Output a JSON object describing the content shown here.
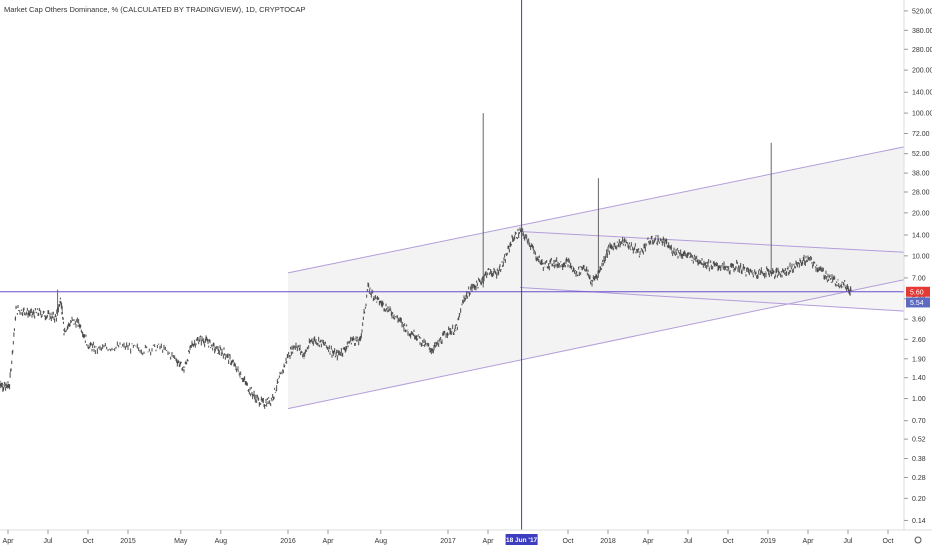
{
  "header": {
    "title": "Market Cap Others Dominance, % (CALCULATED BY TRADINGVIEW), 1D, CRYPTOCAP"
  },
  "chart_data": {
    "type": "candlestick",
    "title": "Market Cap Others Dominance, % (CALCULATED BY TRADINGVIEW), 1D, CRYPTOCAP",
    "y_scale": "log",
    "ylim": [
      0.12,
      620
    ],
    "y_tick_labels": [
      "520.00",
      "380.00",
      "280.00",
      "200.00",
      "140.00",
      "100.00",
      "72.00",
      "52.00",
      "38.00",
      "28.00",
      "20.00",
      "14.00",
      "10.00",
      "7.00",
      "5.00",
      "3.60",
      "2.60",
      "1.90",
      "1.40",
      "1.00",
      "0.70",
      "0.52",
      "0.38",
      "0.28",
      "0.20",
      "0.14"
    ],
    "x_tick_labels": [
      "Apr",
      "Jul",
      "Oct",
      "2015",
      "May",
      "Aug",
      "2016",
      "Apr",
      "Aug",
      "2017",
      "Apr",
      "Jun",
      "Oct",
      "2018",
      "Apr",
      "Jul",
      "Oct",
      "2019",
      "Apr",
      "Jul",
      "Oct"
    ],
    "x_ticks_decimal_year": [
      2014.25,
      2014.5,
      2014.75,
      2015.0,
      2015.33,
      2015.58,
      2016.0,
      2016.25,
      2016.58,
      2017.0,
      2017.25,
      2017.46,
      2017.75,
      2018.0,
      2018.25,
      2018.5,
      2018.75,
      2019.0,
      2019.25,
      2019.5,
      2019.75
    ],
    "x_range_decimal_year": [
      2014.2,
      2019.85
    ],
    "series_color_up": "#4a4a4a",
    "series_color_down": "#4a4a4a",
    "price_path": [
      [
        2014.2,
        1.3
      ],
      [
        2014.23,
        1.2
      ],
      [
        2014.26,
        1.25
      ],
      [
        2014.3,
        4.2
      ],
      [
        2014.35,
        4.1
      ],
      [
        2014.4,
        3.9
      ],
      [
        2014.45,
        4.0
      ],
      [
        2014.5,
        3.8
      ],
      [
        2014.55,
        3.7
      ],
      [
        2014.58,
        5.0
      ],
      [
        2014.6,
        3.0
      ],
      [
        2014.65,
        3.5
      ],
      [
        2014.7,
        3.3
      ],
      [
        2014.75,
        2.4
      ],
      [
        2014.8,
        2.2
      ],
      [
        2014.9,
        2.3
      ],
      [
        2015.0,
        2.3
      ],
      [
        2015.1,
        2.2
      ],
      [
        2015.2,
        2.3
      ],
      [
        2015.3,
        1.9
      ],
      [
        2015.35,
        1.6
      ],
      [
        2015.4,
        2.4
      ],
      [
        2015.45,
        2.6
      ],
      [
        2015.5,
        2.5
      ],
      [
        2015.55,
        2.2
      ],
      [
        2015.6,
        2.1
      ],
      [
        2015.65,
        1.8
      ],
      [
        2015.7,
        1.5
      ],
      [
        2015.75,
        1.2
      ],
      [
        2015.8,
        1.0
      ],
      [
        2015.85,
        0.92
      ],
      [
        2015.9,
        1.0
      ],
      [
        2015.95,
        1.4
      ],
      [
        2016.0,
        2.0
      ],
      [
        2016.05,
        2.4
      ],
      [
        2016.1,
        2.0
      ],
      [
        2016.15,
        2.6
      ],
      [
        2016.2,
        2.5
      ],
      [
        2016.25,
        2.3
      ],
      [
        2016.3,
        2.0
      ],
      [
        2016.35,
        2.2
      ],
      [
        2016.4,
        2.6
      ],
      [
        2016.45,
        2.5
      ],
      [
        2016.5,
        6.0
      ],
      [
        2016.55,
        5.0
      ],
      [
        2016.6,
        4.5
      ],
      [
        2016.65,
        4.0
      ],
      [
        2016.7,
        3.5
      ],
      [
        2016.75,
        3.0
      ],
      [
        2016.8,
        2.8
      ],
      [
        2016.85,
        2.4
      ],
      [
        2016.9,
        2.2
      ],
      [
        2016.95,
        2.5
      ],
      [
        2017.0,
        3.0
      ],
      [
        2017.05,
        3.0
      ],
      [
        2017.1,
        5.0
      ],
      [
        2017.15,
        6.0
      ],
      [
        2017.2,
        6.5
      ],
      [
        2017.25,
        7.8
      ],
      [
        2017.3,
        7.5
      ],
      [
        2017.35,
        9.0
      ],
      [
        2017.4,
        13.0
      ],
      [
        2017.45,
        14.8
      ],
      [
        2017.5,
        13.0
      ],
      [
        2017.55,
        10.0
      ],
      [
        2017.6,
        8.5
      ],
      [
        2017.65,
        9.0
      ],
      [
        2017.7,
        8.8
      ],
      [
        2017.75,
        9.0
      ],
      [
        2017.8,
        7.5
      ],
      [
        2017.85,
        8.5
      ],
      [
        2017.9,
        6.5
      ],
      [
        2017.95,
        8.0
      ],
      [
        2018.0,
        11.0
      ],
      [
        2018.05,
        12.0
      ],
      [
        2018.1,
        12.5
      ],
      [
        2018.15,
        11.5
      ],
      [
        2018.2,
        10.5
      ],
      [
        2018.25,
        12.5
      ],
      [
        2018.3,
        13.0
      ],
      [
        2018.35,
        12.5
      ],
      [
        2018.4,
        11.0
      ],
      [
        2018.45,
        10.5
      ],
      [
        2018.5,
        10.0
      ],
      [
        2018.55,
        9.5
      ],
      [
        2018.6,
        9.0
      ],
      [
        2018.65,
        8.5
      ],
      [
        2018.7,
        8.5
      ],
      [
        2018.75,
        8.0
      ],
      [
        2018.8,
        8.5
      ],
      [
        2018.85,
        8.0
      ],
      [
        2018.9,
        7.6
      ],
      [
        2018.95,
        7.6
      ],
      [
        2019.0,
        7.8
      ],
      [
        2019.05,
        7.5
      ],
      [
        2019.1,
        7.8
      ],
      [
        2019.15,
        8.2
      ],
      [
        2019.2,
        9.0
      ],
      [
        2019.25,
        9.5
      ],
      [
        2019.3,
        8.5
      ],
      [
        2019.35,
        7.5
      ],
      [
        2019.4,
        6.8
      ],
      [
        2019.45,
        6.5
      ],
      [
        2019.5,
        6.0
      ],
      [
        2019.52,
        5.6
      ]
    ],
    "wicks": [
      {
        "x": 2017.22,
        "low": 6.0,
        "high": 100.0
      },
      {
        "x": 2017.94,
        "low": 7.0,
        "high": 35.0
      },
      {
        "x": 2019.02,
        "low": 7.5,
        "high": 62.0
      },
      {
        "x": 2014.56,
        "low": 3.8,
        "high": 5.8
      }
    ],
    "drawings": {
      "horizontal_line": {
        "value": 5.6,
        "color": "#6a4ec9"
      },
      "vertical_cursor": {
        "x": 2017.46,
        "label": "18 Jun '17",
        "color": "#3d3dbf"
      },
      "channel_upper_rising": {
        "from": [
          2016.0,
          7.6
        ],
        "to": [
          2019.85,
          58.0
        ]
      },
      "channel_lower_rising": {
        "from": [
          2016.0,
          0.85
        ],
        "to": [
          2019.85,
          6.8
        ]
      },
      "channel_upper_falling": {
        "from": [
          2017.45,
          14.8
        ],
        "to": [
          2019.85,
          10.6
        ]
      },
      "channel_lower_falling": {
        "from": [
          2017.45,
          6.0
        ],
        "to": [
          2019.85,
          4.1
        ]
      },
      "channel_color": "#b39ddb"
    },
    "price_labels": [
      {
        "value": "5.60",
        "color": "#e53935"
      },
      {
        "value": "5.54",
        "color": "#5c6bc0"
      }
    ],
    "grid": false,
    "legend": "none"
  }
}
